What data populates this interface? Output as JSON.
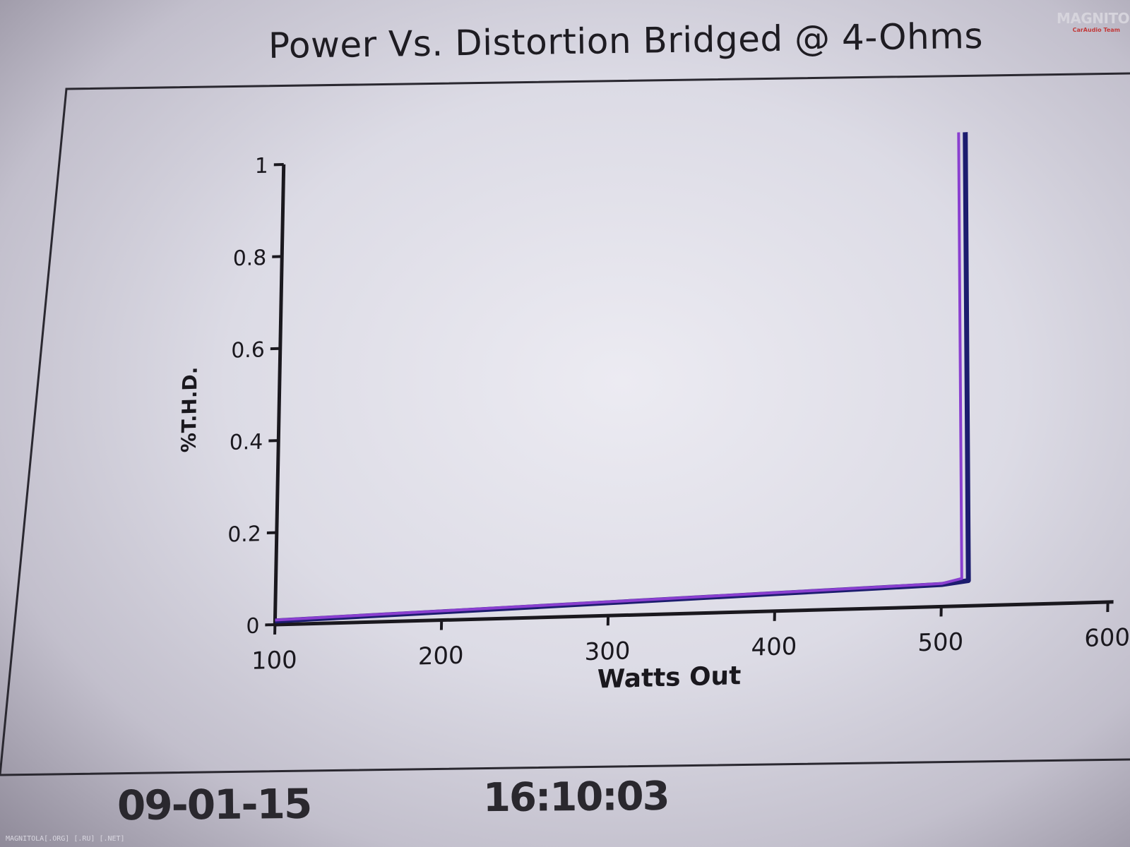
{
  "header": {
    "title": "Power Vs. Distortion Bridged @ 4-Ohms",
    "logo_text": "MAGNITOLA",
    "logo_sub": "CarAudio Team"
  },
  "footer": {
    "date": "09-01-15",
    "time": "16:10:03",
    "watermark": "MAGNITOLA[.ORG] [.RU] [.NET]"
  },
  "colors": {
    "series_purple": "#8a3fd0",
    "series_navy": "#1c1c6e",
    "axis": "#1a181e",
    "frame": "#2a2830"
  },
  "chart_data": {
    "type": "line",
    "title": "Power Vs. Distortion Bridged @ 4-Ohms",
    "xlabel": "Watts Out",
    "ylabel": "%T.H.D.",
    "xlim": [
      100,
      600
    ],
    "ylim": [
      0,
      1
    ],
    "x_ticks": [
      "100",
      "200",
      "300",
      "400",
      "500",
      "600"
    ],
    "y_ticks": [
      "0",
      "0.2",
      "0.4",
      "0.6",
      "0.8",
      "1"
    ],
    "grid": false,
    "series": [
      {
        "color": "#8a3fd0",
        "x": [
          100,
          200,
          300,
          400,
          500,
          512,
          505
        ],
        "y": [
          0.01,
          0.02,
          0.03,
          0.04,
          0.05,
          0.06,
          1.03
        ]
      },
      {
        "color": "#1c1c6e",
        "x": [
          100,
          200,
          300,
          400,
          500,
          516,
          509
        ],
        "y": [
          0.008,
          0.018,
          0.028,
          0.038,
          0.048,
          0.055,
          1.03
        ]
      }
    ]
  }
}
